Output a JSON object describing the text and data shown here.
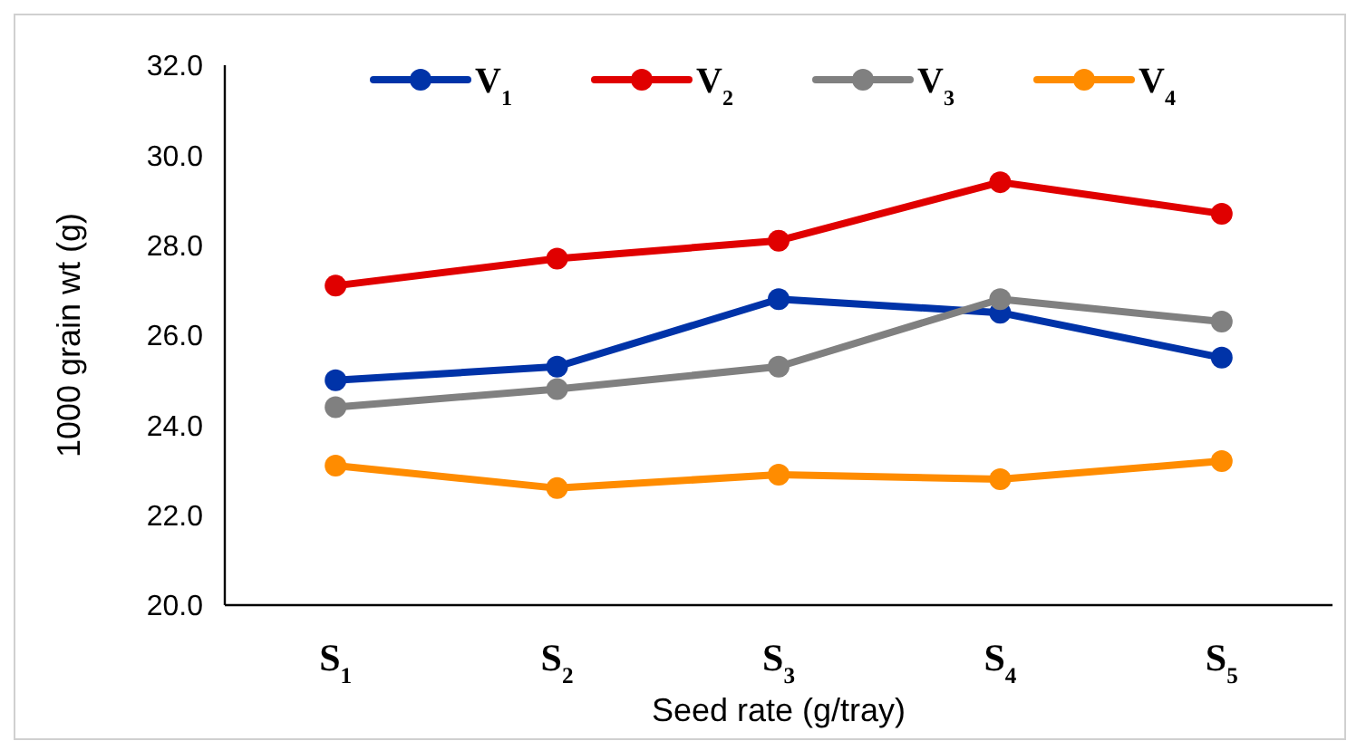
{
  "chart_data": {
    "type": "line",
    "xlabel": "Seed rate (g/tray)",
    "ylabel": "1000 grain wt (g)",
    "categories": [
      "S$_{1}$",
      "S$_{2}$",
      "S$_{3}$",
      "S$_{4}$",
      "S$_{5}$"
    ],
    "series": [
      {
        "name": "V$_{1}$",
        "color": "#0033a8",
        "values": [
          25.0,
          25.3,
          26.8,
          26.5,
          25.5
        ]
      },
      {
        "name": "V$_{2}$",
        "color": "#e00000",
        "values": [
          27.1,
          27.7,
          28.1,
          29.4,
          28.7
        ]
      },
      {
        "name": "V$_{3}$",
        "color": "#808080",
        "values": [
          24.4,
          24.8,
          25.3,
          26.8,
          26.3
        ]
      },
      {
        "name": "V$_{4}$",
        "color": "#ff8c00",
        "values": [
          23.1,
          22.6,
          22.9,
          22.8,
          23.2
        ]
      }
    ],
    "ylim": [
      20,
      32
    ],
    "yticks": [
      {
        "value": 20,
        "label": "20.0"
      },
      {
        "value": 22,
        "label": "22.0"
      },
      {
        "value": 24,
        "label": "24.0"
      },
      {
        "value": 26,
        "label": "26.0"
      },
      {
        "value": 28,
        "label": "28.0"
      },
      {
        "value": 30,
        "label": "30.0"
      },
      {
        "value": 32,
        "label": "32.0"
      }
    ],
    "grid": false,
    "legend": "top",
    "marker": "circle",
    "line_style": "solid"
  }
}
